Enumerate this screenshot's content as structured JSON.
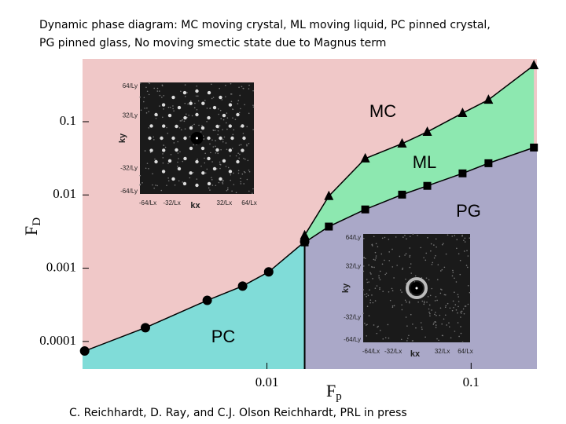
{
  "chart_data": {
    "type": "phase",
    "title_lines": [
      "Dynamic phase diagram: MC moving crystal, ML  moving liquid, PC pinned crystal,",
      "PG pinned glass,  No moving smectic state due  to Magnus term"
    ],
    "x_label": {
      "main": "F",
      "sub": "p"
    },
    "y_label": {
      "main": "F",
      "sub": "D"
    },
    "footer": "C. Reichhardt, D. Ray, and C.J. Olson Reichhardt, PRL in press",
    "log_x": true,
    "log_y": true,
    "xlim": [
      0.00125,
      0.21
    ],
    "ylim": [
      4.2e-05,
      0.72
    ],
    "xticks": [
      0.01,
      0.1
    ],
    "yticks": [
      0.0001,
      0.001,
      0.01,
      0.1
    ],
    "series": [
      {
        "name": "PC",
        "marker": "circle",
        "color": "#000000",
        "fill": "#80dcd8",
        "x": [
          0.00128,
          0.00254,
          0.0051,
          0.0076,
          0.0102,
          0.0153
        ],
        "values": [
          7.4e-05,
          0.000154,
          0.000364,
          0.00057,
          0.00089,
          0.0023
        ]
      },
      {
        "name": "MC",
        "marker": "triangle",
        "color": "#000000",
        "fill": "#8de8b0",
        "x": [
          0.0153,
          0.0201,
          0.0303,
          0.0459,
          0.061,
          0.0908,
          0.1216,
          0.203
        ],
        "values": [
          0.00281,
          0.00964,
          0.0314,
          0.0502,
          0.0726,
          0.131,
          0.199,
          0.589
        ]
      },
      {
        "name": "ML",
        "marker": "square",
        "color": "#000000",
        "fill": "#aaa8c8",
        "x": [
          0.0153,
          0.0201,
          0.0303,
          0.0459,
          0.061,
          0.0908,
          0.1216,
          0.203
        ],
        "values": [
          0.00225,
          0.0037,
          0.00634,
          0.0101,
          0.0133,
          0.0197,
          0.0271,
          0.0444
        ]
      }
    ],
    "background_color": "#f0c8c8",
    "regions": [
      "MC",
      "ML",
      "PG",
      "PC"
    ],
    "insets": [
      {
        "y_labels": [
          "64/Ly",
          "32/Ly",
          "-32/Ly",
          "-64/Ly"
        ],
        "y_axis": "ky",
        "x_labels": [
          "-64/Lx",
          "-32/Lx",
          "32/Lx",
          "64/Lx"
        ],
        "x_axis": "kx"
      },
      {
        "y_labels": [
          "64/Ly",
          "32/Ly",
          "-32/Ly",
          "-64/Ly"
        ],
        "y_axis": "ky",
        "x_labels": [
          "-64/Lx",
          "-32/Lx",
          "32/Lx",
          "64/Lx"
        ],
        "x_axis": "kx"
      }
    ]
  }
}
